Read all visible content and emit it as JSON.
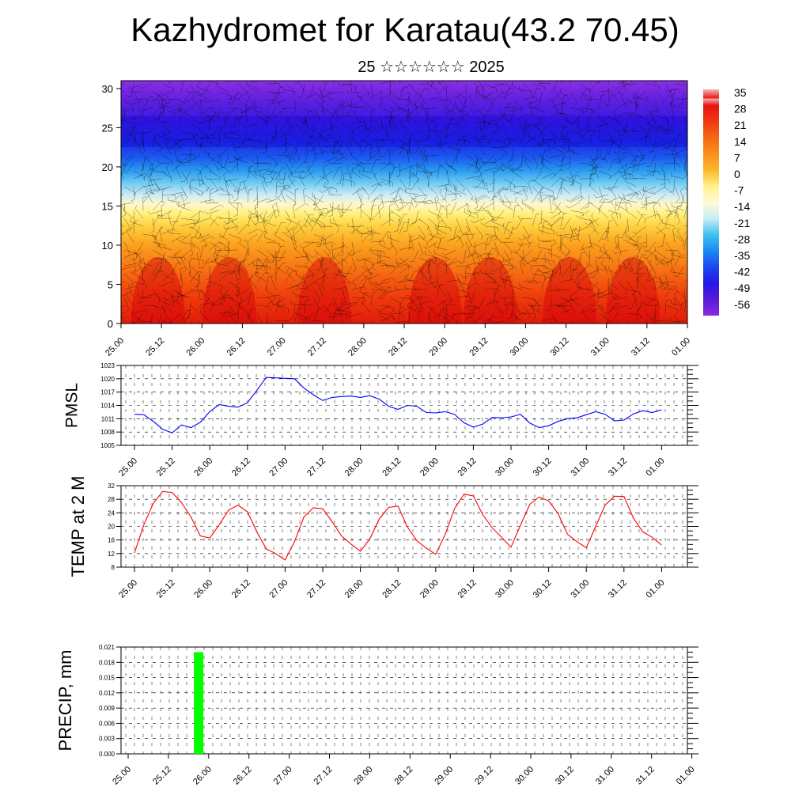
{
  "title": "Kazhydromet for Karatau(43.2 70.45)",
  "subtitle": "25 ☆☆☆☆☆☆ 2025",
  "time_ticks": [
    "25.00",
    "25.12",
    "26.00",
    "26.12",
    "27.00",
    "27.12",
    "28.00",
    "28.12",
    "29.00",
    "29.12",
    "30.00",
    "30.12",
    "31.00",
    "31.12",
    "01.00"
  ],
  "colors": {
    "pmsl_line": "#0000ff",
    "temp_line": "#ff0000",
    "precip_bar": "#00ff00"
  },
  "chart_data": [
    {
      "type": "heatmap",
      "title": "",
      "description_axis": "altitude",
      "ylim": [
        0,
        31
      ],
      "y_ticks": [
        0,
        5,
        10,
        15,
        20,
        25,
        30
      ],
      "x": [
        "25.00",
        "25.12",
        "26.00",
        "26.12",
        "27.00",
        "27.12",
        "28.00",
        "28.12",
        "29.00",
        "29.12",
        "30.00",
        "30.12",
        "31.00",
        "31.12",
        "01.00"
      ],
      "colorbar_labels": [
        "35",
        "28",
        "21",
        "14",
        "7",
        "0",
        "-7",
        "-14",
        "-21",
        "-28",
        "-35",
        "-42",
        "-49",
        "-56"
      ],
      "colorbar_colors": [
        "#f4b6b4",
        "#e8120f",
        "#f03a10",
        "#f56815",
        "#f9901c",
        "#fdb72a",
        "#fff38a",
        "#fffbd8",
        "#c8ecf8",
        "#3fc0f0",
        "#1a8af0",
        "#1c47f0",
        "#2418e8",
        "#5a1ad8",
        "#8a2ae0"
      ],
      "wind_barbs": true
    },
    {
      "type": "line",
      "ylabel": "PMSL",
      "ylim": [
        1005,
        1023
      ],
      "y_ticks": [
        1005,
        1008,
        1011,
        1014,
        1017,
        1020,
        1023
      ],
      "x_ticks": [
        "25.00",
        "25.12",
        "26.00",
        "26.12",
        "27.00",
        "27.12",
        "28.00",
        "28.12",
        "29.00",
        "29.12",
        "30.00",
        "30.12",
        "31.00",
        "31.12",
        "01.00"
      ],
      "grid": true,
      "values": [
        1012.0,
        1011.9,
        1010.4,
        1008.6,
        1007.8,
        1009.6,
        1009.0,
        1010.2,
        1012.6,
        1014.2,
        1013.8,
        1013.6,
        1014.6,
        1017.4,
        1020.3,
        1020.2,
        1020.1,
        1020.0,
        1017.9,
        1016.4,
        1015.1,
        1015.8,
        1016.0,
        1016.1,
        1015.8,
        1016.2,
        1015.4,
        1013.8,
        1013.1,
        1014.0,
        1013.8,
        1012.4,
        1012.3,
        1012.6,
        1012.0,
        1010.1,
        1009.1,
        1009.8,
        1011.3,
        1011.2,
        1011.4,
        1012.0,
        1010.0,
        1009.0,
        1009.4,
        1010.4,
        1011.0,
        1011.2,
        1011.9,
        1012.6,
        1012.0,
        1010.5,
        1010.7,
        1012.1,
        1012.8,
        1012.4,
        1013.0
      ],
      "x_start": 25.0,
      "x_end": 32.0,
      "x_step_hours": 3
    },
    {
      "type": "line",
      "ylabel": "TEMP at 2 M",
      "ylim": [
        8,
        32
      ],
      "y_ticks": [
        8,
        12,
        16,
        20,
        24,
        28,
        32
      ],
      "x_ticks": [
        "25.00",
        "25.12",
        "26.00",
        "26.12",
        "27.00",
        "27.12",
        "28.00",
        "28.12",
        "29.00",
        "29.12",
        "30.00",
        "30.12",
        "31.00",
        "31.12",
        "01.00"
      ],
      "grid": true,
      "values": [
        12.2,
        20.5,
        26.8,
        30.3,
        30.0,
        27.0,
        22.8,
        17.2,
        16.6,
        20.5,
        24.8,
        26.3,
        24.3,
        18.4,
        13.4,
        12.0,
        10.1,
        15.5,
        22.8,
        25.5,
        25.2,
        21.4,
        17.2,
        14.8,
        12.7,
        16.3,
        22.2,
        25.6,
        26.0,
        19.8,
        15.8,
        13.6,
        11.8,
        17.6,
        25.2,
        29.5,
        29.0,
        23.4,
        19.6,
        16.8,
        13.9,
        20.3,
        26.5,
        28.7,
        27.5,
        23.8,
        17.7,
        15.5,
        13.7,
        20.0,
        26.3,
        28.9,
        28.8,
        22.5,
        18.4,
        16.8,
        14.5
      ],
      "x_start": 25.0,
      "x_end": 32.0,
      "x_step_hours": 3
    },
    {
      "type": "bar",
      "ylabel": "PRECIP, mm",
      "ylim": [
        0.0,
        0.021
      ],
      "y_tick_labels": [
        "0.000",
        "0.003",
        "0.006",
        "0.009",
        "0.012",
        "0.015",
        "0.018",
        "0.021"
      ],
      "y_ticks": [
        0.0,
        0.003,
        0.006,
        0.009,
        0.012,
        0.015,
        0.018,
        0.021
      ],
      "x_ticks": [
        "25.00",
        "25.12",
        "26.00",
        "26.12",
        "27.00",
        "27.12",
        "28.00",
        "28.12",
        "29.00",
        "29.12",
        "30.00",
        "30.12",
        "31.00",
        "31.12",
        "01.00"
      ],
      "grid": true,
      "bars": [
        {
          "x_hours": 21,
          "value": 0.02
        }
      ]
    }
  ]
}
